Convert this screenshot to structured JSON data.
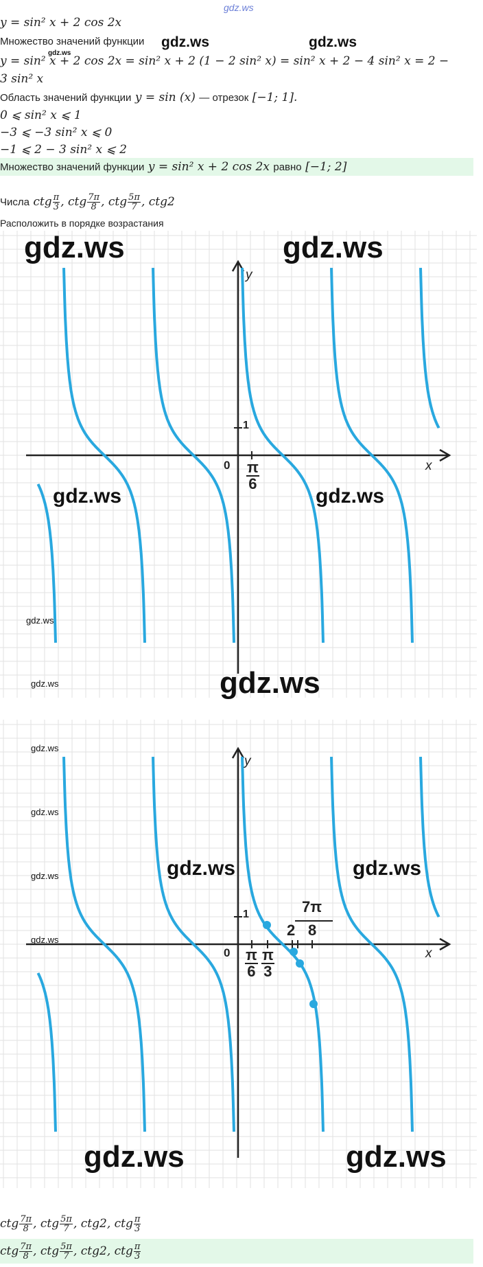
{
  "watermark_top": "gdz.ws",
  "watermark": "gdz.ws",
  "part1": {
    "line1": "y = sin² x + 2 cos 2x",
    "line2_text": "Множество значений функции",
    "line3": "y = sin² x + 2 cos 2x = sin² x + 2 (1 − 2 sin² x) = sin² x + 2 − 4 sin² x = 2 −",
    "line4": "3 sin² x",
    "line5_text": "Область значений функции",
    "line5_math": "y = sin (x)",
    "line5_rest": "— отрезок",
    "line5_interval": "[−1; 1].",
    "ineq1": "0  ⩽  sin² x  ⩽  1",
    "ineq2": "−3  ⩽  −3 sin² x  ⩽  0",
    "ineq3": "−1  ⩽  2 − 3 sin² x  ⩽  2",
    "answer_text": "Множество значений функции",
    "answer_math": "y = sin² x + 2 cos 2x",
    "answer_word": "равно",
    "answer_interval": "[−1;  2]"
  },
  "part2": {
    "numbers_label": "Числа",
    "ctg": "ctg",
    "f1_num": "π",
    "f1_den": "3",
    "f2_num": "7π",
    "f2_den": "8",
    "f3_num": "5π",
    "f3_den": "7",
    "last": "ctg2",
    "task": "Расположить в порядке возрастания"
  },
  "graph1": {
    "y_label": "y",
    "x_label": "x",
    "origin": "0",
    "tick_1": "1",
    "pi_num": "π",
    "pi_den": "6"
  },
  "graph2": {
    "y_label": "y",
    "x_label": "x",
    "origin": "0",
    "tick_1": "1",
    "pi6_num": "π",
    "pi6_den": "6",
    "pi3_num": "π",
    "pi3_den": "3",
    "two": "2",
    "sevenpi_num": "7π",
    "sevenpi_den": "8"
  },
  "answer": {
    "ctg": "ctg",
    "a_num": "7π",
    "a_den": "8",
    "b_num": "5π",
    "b_den": "7",
    "c": "ctg2,",
    "d_num": "π",
    "d_den": "3"
  },
  "colors": {
    "curve": "#29a8df",
    "grid": "#e2e2e2",
    "highlight": "#e3f8e8",
    "axis": "#222222"
  }
}
